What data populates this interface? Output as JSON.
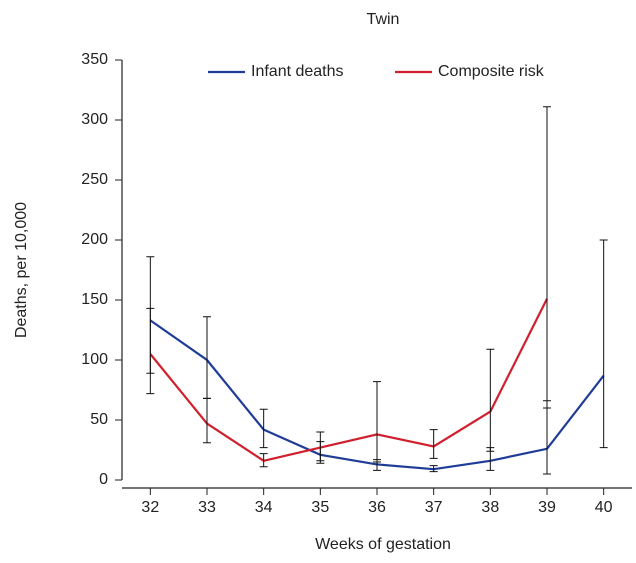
{
  "chart_data": {
    "type": "line",
    "title": "Twin",
    "x_label": "Weeks of gestation",
    "y_label": "Deaths, per 10,000",
    "categories": [
      "32",
      "33",
      "34",
      "35",
      "36",
      "37",
      "38",
      "39",
      "40"
    ],
    "series": [
      {
        "name": "Infant deaths",
        "color": "#1f3c99",
        "values": [
          133,
          100,
          42,
          21,
          13,
          9,
          16,
          26,
          87
        ],
        "ci_low": [
          89,
          68,
          27,
          14,
          8,
          7,
          8,
          5,
          27
        ],
        "ci_high": [
          186,
          136,
          59,
          32,
          17,
          12,
          27,
          66,
          200
        ]
      },
      {
        "name": "Composite risk",
        "color": "#d0202e",
        "values": [
          105,
          47,
          16,
          27,
          38,
          28,
          57,
          151,
          null
        ],
        "ci_low": [
          72,
          31,
          11,
          16,
          15,
          18,
          24,
          60,
          null
        ],
        "ci_high": [
          143,
          68,
          22,
          40,
          82,
          42,
          109,
          311,
          null
        ]
      }
    ],
    "ylim": [
      0,
      350
    ],
    "yticks": [
      0,
      50,
      100,
      150,
      200,
      250,
      300,
      350
    ],
    "error_color": "#111",
    "legend": "top"
  }
}
